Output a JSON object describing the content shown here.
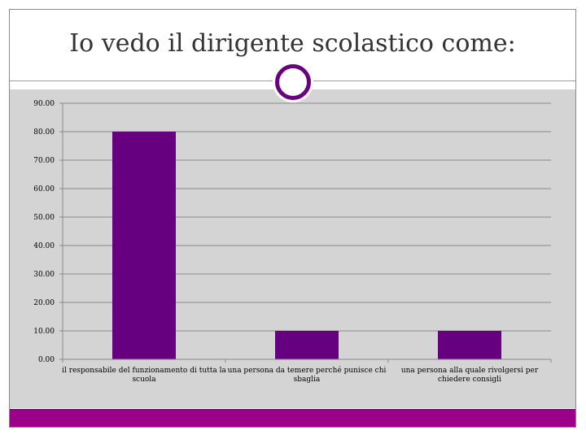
{
  "slide": {
    "title": "Io vedo il dirigente scolastico come:"
  },
  "colors": {
    "bar": "#660080",
    "accent": "#9a0088",
    "grid": "#8a8a8a"
  },
  "chart_data": {
    "type": "bar",
    "categories": [
      [
        "il responsabile del funzionamento di tutta la",
        "scuola"
      ],
      [
        "una persona da temere perché punisce chi",
        "sbaglia"
      ],
      [
        "una persona alla quale rivolgersi per",
        "chiedere consigli"
      ]
    ],
    "values": [
      80,
      10,
      10
    ],
    "ylim": [
      0,
      90
    ],
    "yticks": [
      0,
      10,
      20,
      30,
      40,
      50,
      60,
      70,
      80,
      90
    ],
    "tick_labels": [
      "0.00",
      "10.00",
      "20.00",
      "30.00",
      "40.00",
      "50.00",
      "60.00",
      "70.00",
      "80.00",
      "90.00"
    ],
    "grid": true,
    "legend": "none"
  }
}
